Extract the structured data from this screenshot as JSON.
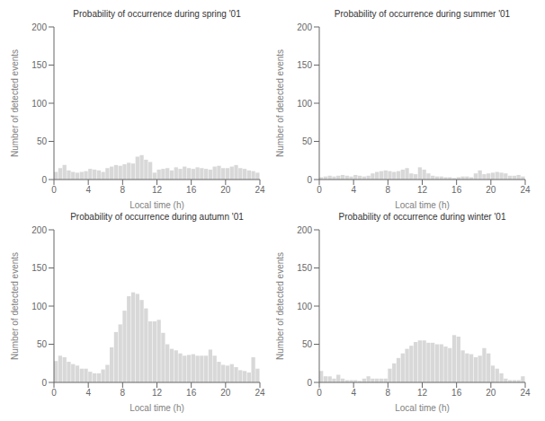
{
  "chart_data": [
    {
      "type": "bar",
      "title": "Probability of occurrence during spring '01",
      "xlabel": "Local time (h)",
      "ylabel": "Number of detected events",
      "color": "#d8d8d8",
      "grid": false,
      "xlim": [
        0,
        24
      ],
      "xticks": [
        0,
        4,
        8,
        12,
        16,
        20,
        24
      ],
      "ylim": [
        0,
        200
      ],
      "yticks": [
        0,
        50,
        100,
        150,
        200
      ],
      "bins": [
        0,
        0.5,
        1,
        1.5,
        2,
        2.5,
        3,
        3.5,
        4,
        4.5,
        5,
        5.5,
        6,
        6.5,
        7,
        7.5,
        8,
        8.5,
        9,
        9.5,
        10,
        10.5,
        11,
        11.5,
        12,
        12.5,
        13,
        13.5,
        14,
        14.5,
        15,
        15.5,
        16,
        16.5,
        17,
        17.5,
        18,
        18.5,
        19,
        19.5,
        20,
        20.5,
        21,
        21.5,
        22,
        22.5,
        23,
        23.5,
        24
      ],
      "values": [
        10,
        15,
        19,
        12,
        10,
        9,
        10,
        11,
        14,
        13,
        12,
        10,
        15,
        17,
        19,
        18,
        20,
        22,
        21,
        30,
        32,
        26,
        23,
        9,
        13,
        14,
        15,
        12,
        16,
        14,
        17,
        15,
        14,
        16,
        15,
        14,
        13,
        17,
        18,
        15,
        15,
        17,
        19,
        15,
        14,
        12,
        11,
        9
      ]
    },
    {
      "type": "bar",
      "title": "Probability of occurrence during summer '01",
      "xlabel": "Local time (h)",
      "ylabel": "Number of detected events",
      "color": "#d8d8d8",
      "grid": false,
      "xlim": [
        0,
        24
      ],
      "xticks": [
        0,
        4,
        8,
        12,
        16,
        20,
        24
      ],
      "ylim": [
        0,
        200
      ],
      "yticks": [
        0,
        50,
        100,
        150,
        200
      ],
      "bins": [
        0,
        0.5,
        1,
        1.5,
        2,
        2.5,
        3,
        3.5,
        4,
        4.5,
        5,
        5.5,
        6,
        6.5,
        7,
        7.5,
        8,
        8.5,
        9,
        9.5,
        10,
        10.5,
        11,
        11.5,
        12,
        12.5,
        13,
        13.5,
        14,
        14.5,
        15,
        15.5,
        16,
        16.5,
        17,
        17.5,
        18,
        18.5,
        19,
        19.5,
        20,
        20.5,
        21,
        21.5,
        22,
        22.5,
        23,
        23.5,
        24
      ],
      "values": [
        3,
        4,
        5,
        4,
        5,
        6,
        5,
        4,
        6,
        5,
        4,
        5,
        8,
        10,
        11,
        12,
        11,
        10,
        11,
        13,
        15,
        8,
        7,
        16,
        13,
        8,
        5,
        4,
        4,
        3,
        3,
        2,
        3,
        4,
        4,
        3,
        8,
        12,
        7,
        8,
        9,
        10,
        9,
        8,
        5,
        5,
        6,
        4
      ]
    },
    {
      "type": "bar",
      "title": "Probability of occurrence during autumn '01",
      "xlabel": "Local time (h)",
      "ylabel": "Number of detected events",
      "color": "#d8d8d8",
      "grid": false,
      "xlim": [
        0,
        24
      ],
      "xticks": [
        0,
        4,
        8,
        12,
        16,
        20,
        24
      ],
      "ylim": [
        0,
        200
      ],
      "yticks": [
        0,
        50,
        100,
        150,
        200
      ],
      "bins": [
        0,
        0.5,
        1,
        1.5,
        2,
        2.5,
        3,
        3.5,
        4,
        4.5,
        5,
        5.5,
        6,
        6.5,
        7,
        7.5,
        8,
        8.5,
        9,
        9.5,
        10,
        10.5,
        11,
        11.5,
        12,
        12.5,
        13,
        13.5,
        14,
        14.5,
        15,
        15.5,
        16,
        16.5,
        17,
        17.5,
        18,
        18.5,
        19,
        19.5,
        20,
        20.5,
        21,
        21.5,
        22,
        22.5,
        23,
        23.5,
        24
      ],
      "values": [
        28,
        35,
        33,
        27,
        24,
        22,
        18,
        18,
        14,
        12,
        12,
        17,
        23,
        46,
        66,
        76,
        94,
        113,
        118,
        116,
        108,
        97,
        80,
        80,
        82,
        65,
        50,
        44,
        42,
        38,
        35,
        36,
        37,
        35,
        35,
        35,
        43,
        35,
        27,
        23,
        22,
        24,
        20,
        16,
        15,
        13,
        33,
        18
      ]
    },
    {
      "type": "bar",
      "title": "Probability of occurrence during winter '01",
      "xlabel": "Local time (h)",
      "ylabel": "Number of detected events",
      "color": "#d8d8d8",
      "grid": false,
      "xlim": [
        0,
        24
      ],
      "xticks": [
        0,
        4,
        8,
        12,
        16,
        20,
        24
      ],
      "ylim": [
        0,
        200
      ],
      "yticks": [
        0,
        50,
        100,
        150,
        200
      ],
      "bins": [
        0,
        0.5,
        1,
        1.5,
        2,
        2.5,
        3,
        3.5,
        4,
        4.5,
        5,
        5.5,
        6,
        6.5,
        7,
        7.5,
        8,
        8.5,
        9,
        9.5,
        10,
        10.5,
        11,
        11.5,
        12,
        12.5,
        13,
        13.5,
        14,
        14.5,
        15,
        15.5,
        16,
        16.5,
        17,
        17.5,
        18,
        18.5,
        19,
        19.5,
        20,
        20.5,
        21,
        21.5,
        22,
        22.5,
        23,
        23.5,
        24
      ],
      "values": [
        15,
        8,
        8,
        5,
        10,
        5,
        3,
        3,
        3,
        2,
        5,
        8,
        5,
        5,
        5,
        5,
        18,
        25,
        32,
        38,
        44,
        48,
        53,
        55,
        55,
        52,
        52,
        50,
        50,
        47,
        45,
        62,
        60,
        42,
        38,
        37,
        33,
        35,
        45,
        38,
        22,
        18,
        12,
        5,
        3,
        3,
        3,
        8
      ]
    }
  ]
}
